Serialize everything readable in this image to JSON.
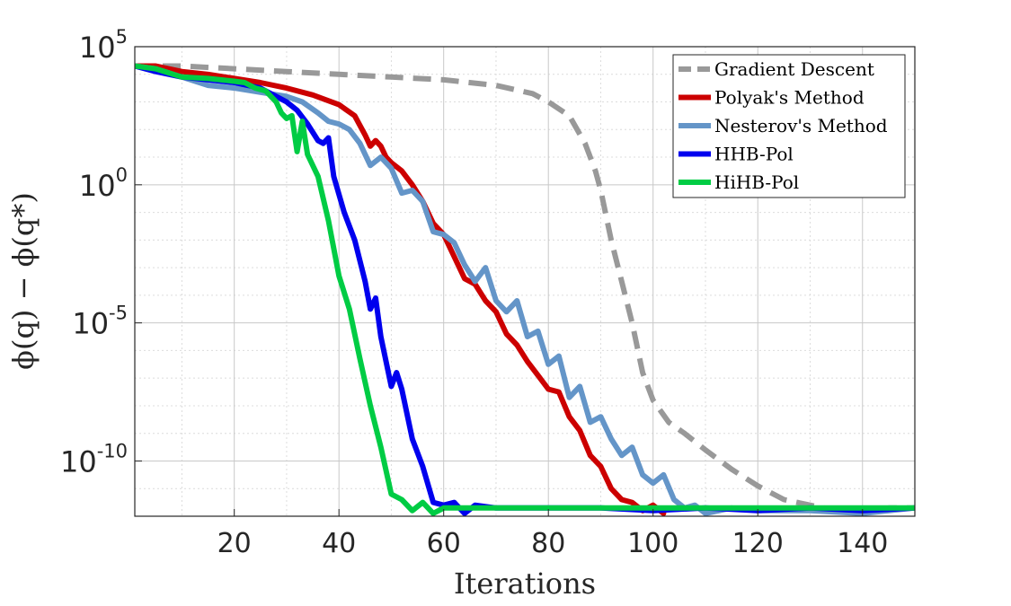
{
  "chart_data": {
    "type": "line",
    "title": "",
    "xlabel": "Iterations",
    "ylabel": "ϕ(q) − ϕ(q*)",
    "yscale": "log10",
    "xlim": [
      1,
      150
    ],
    "ylim_exponent": [
      -12,
      5
    ],
    "x_ticks": [
      20,
      40,
      60,
      80,
      100,
      120,
      140
    ],
    "y_ticks": [
      {
        "base": "10",
        "exp": "5",
        "value": 5
      },
      {
        "base": "10",
        "exp": "0",
        "value": 0
      },
      {
        "base": "10",
        "exp": "-5",
        "value": -5
      },
      {
        "base": "10",
        "exp": "-10",
        "value": -10
      }
    ],
    "grid": true,
    "minor_grid": true,
    "legend_position": "top-right",
    "series": [
      {
        "name": "Gradient Descent",
        "color": "#999999",
        "dashed": true,
        "points": [
          [
            1,
            4.3
          ],
          [
            10,
            4.3
          ],
          [
            20,
            4.2
          ],
          [
            30,
            4.1
          ],
          [
            40,
            4.0
          ],
          [
            50,
            3.9
          ],
          [
            60,
            3.8
          ],
          [
            70,
            3.6
          ],
          [
            77,
            3.3
          ],
          [
            80,
            3.0
          ],
          [
            84,
            2.5
          ],
          [
            87,
            1.5
          ],
          [
            89,
            0.5
          ],
          [
            90,
            -0.2
          ],
          [
            92,
            -2.0
          ],
          [
            94,
            -3.5
          ],
          [
            96,
            -5.0
          ],
          [
            98,
            -6.8
          ],
          [
            100,
            -7.8
          ],
          [
            103,
            -8.6
          ],
          [
            106,
            -9.0
          ],
          [
            110,
            -9.6
          ],
          [
            115,
            -10.3
          ],
          [
            120,
            -10.9
          ],
          [
            125,
            -11.4
          ],
          [
            130,
            -11.6
          ],
          [
            135,
            -11.8
          ],
          [
            140,
            -11.8
          ],
          [
            145,
            -11.7
          ],
          [
            150,
            -11.7
          ]
        ]
      },
      {
        "name": "Polyak's Method",
        "color": "#cc0000",
        "dashed": false,
        "points": [
          [
            1,
            4.3
          ],
          [
            5,
            4.3
          ],
          [
            10,
            4.1
          ],
          [
            15,
            4.0
          ],
          [
            20,
            3.85
          ],
          [
            25,
            3.7
          ],
          [
            30,
            3.5
          ],
          [
            35,
            3.25
          ],
          [
            40,
            2.9
          ],
          [
            43,
            2.5
          ],
          [
            45,
            1.8
          ],
          [
            46,
            1.4
          ],
          [
            47,
            1.6
          ],
          [
            48,
            1.4
          ],
          [
            49,
            1.0
          ],
          [
            50,
            0.8
          ],
          [
            52,
            0.5
          ],
          [
            54,
            0.0
          ],
          [
            56,
            -0.6
          ],
          [
            58,
            -1.4
          ],
          [
            60,
            -1.8
          ],
          [
            62,
            -2.6
          ],
          [
            64,
            -3.4
          ],
          [
            66,
            -3.6
          ],
          [
            68,
            -4.2
          ],
          [
            70,
            -4.6
          ],
          [
            72,
            -5.4
          ],
          [
            74,
            -5.8
          ],
          [
            76,
            -6.4
          ],
          [
            78,
            -6.9
          ],
          [
            80,
            -7.4
          ],
          [
            82,
            -7.5
          ],
          [
            84,
            -8.4
          ],
          [
            86,
            -8.9
          ],
          [
            88,
            -9.8
          ],
          [
            90,
            -10.2
          ],
          [
            92,
            -11.0
          ],
          [
            94,
            -11.4
          ],
          [
            96,
            -11.5
          ],
          [
            98,
            -11.8
          ],
          [
            100,
            -11.6
          ],
          [
            102,
            -11.9
          ]
        ]
      },
      {
        "name": "Nesterov's Method",
        "color": "#6495c8",
        "dashed": false,
        "points": [
          [
            1,
            4.3
          ],
          [
            5,
            4.2
          ],
          [
            10,
            3.9
          ],
          [
            15,
            3.6
          ],
          [
            20,
            3.5
          ],
          [
            25,
            3.35
          ],
          [
            30,
            3.2
          ],
          [
            33,
            3.0
          ],
          [
            36,
            2.6
          ],
          [
            38,
            2.3
          ],
          [
            40,
            2.2
          ],
          [
            42,
            2.0
          ],
          [
            44,
            1.5
          ],
          [
            46,
            0.7
          ],
          [
            48,
            1.0
          ],
          [
            50,
            0.6
          ],
          [
            52,
            -0.3
          ],
          [
            54,
            -0.2
          ],
          [
            56,
            -0.6
          ],
          [
            58,
            -1.7
          ],
          [
            60,
            -1.8
          ],
          [
            62,
            -2.1
          ],
          [
            64,
            -2.9
          ],
          [
            66,
            -3.5
          ],
          [
            68,
            -3.0
          ],
          [
            70,
            -4.2
          ],
          [
            72,
            -4.6
          ],
          [
            74,
            -4.2
          ],
          [
            76,
            -5.5
          ],
          [
            78,
            -5.3
          ],
          [
            80,
            -6.5
          ],
          [
            82,
            -6.2
          ],
          [
            84,
            -7.7
          ],
          [
            86,
            -7.3
          ],
          [
            88,
            -8.6
          ],
          [
            90,
            -8.4
          ],
          [
            92,
            -9.2
          ],
          [
            94,
            -9.8
          ],
          [
            96,
            -9.5
          ],
          [
            98,
            -10.5
          ],
          [
            100,
            -10.8
          ],
          [
            102,
            -10.5
          ],
          [
            104,
            -11.4
          ],
          [
            106,
            -11.7
          ],
          [
            108,
            -11.6
          ],
          [
            110,
            -11.9
          ],
          [
            115,
            -11.7
          ],
          [
            120,
            -11.8
          ],
          [
            130,
            -11.8
          ],
          [
            140,
            -11.9
          ],
          [
            150,
            -11.7
          ]
        ]
      },
      {
        "name": "HHB-Pol",
        "color": "#0000ee",
        "dashed": false,
        "points": [
          [
            1,
            4.3
          ],
          [
            5,
            4.1
          ],
          [
            10,
            3.9
          ],
          [
            15,
            3.8
          ],
          [
            20,
            3.7
          ],
          [
            25,
            3.5
          ],
          [
            28,
            3.2
          ],
          [
            30,
            3.0
          ],
          [
            32,
            2.7
          ],
          [
            34,
            2.2
          ],
          [
            36,
            1.6
          ],
          [
            37,
            1.5
          ],
          [
            38,
            1.7
          ],
          [
            39,
            0.3
          ],
          [
            41,
            -1.0
          ],
          [
            43,
            -2.0
          ],
          [
            45,
            -3.5
          ],
          [
            46,
            -4.5
          ],
          [
            47,
            -4.1
          ],
          [
            48,
            -5.5
          ],
          [
            50,
            -7.3
          ],
          [
            51,
            -6.8
          ],
          [
            52,
            -7.4
          ],
          [
            54,
            -9.2
          ],
          [
            56,
            -10.2
          ],
          [
            58,
            -11.5
          ],
          [
            60,
            -11.6
          ],
          [
            62,
            -11.5
          ],
          [
            64,
            -11.9
          ],
          [
            66,
            -11.6
          ],
          [
            70,
            -11.7
          ],
          [
            75,
            -11.7
          ],
          [
            80,
            -11.7
          ],
          [
            90,
            -11.7
          ],
          [
            100,
            -11.8
          ],
          [
            110,
            -11.7
          ],
          [
            120,
            -11.8
          ],
          [
            130,
            -11.7
          ],
          [
            140,
            -11.8
          ],
          [
            150,
            -11.7
          ]
        ]
      },
      {
        "name": "HiHB-Pol",
        "color": "#00cc44",
        "dashed": false,
        "points": [
          [
            1,
            4.3
          ],
          [
            5,
            4.2
          ],
          [
            10,
            3.9
          ],
          [
            15,
            3.85
          ],
          [
            20,
            3.75
          ],
          [
            22,
            3.7
          ],
          [
            24,
            3.5
          ],
          [
            26,
            3.4
          ],
          [
            27,
            3.2
          ],
          [
            28,
            3.0
          ],
          [
            29,
            2.6
          ],
          [
            30,
            2.4
          ],
          [
            31,
            2.5
          ],
          [
            32,
            1.2
          ],
          [
            33,
            2.3
          ],
          [
            34,
            1.1
          ],
          [
            36,
            0.3
          ],
          [
            38,
            -1.3
          ],
          [
            40,
            -3.3
          ],
          [
            42,
            -4.5
          ],
          [
            44,
            -6.3
          ],
          [
            46,
            -8.0
          ],
          [
            48,
            -9.5
          ],
          [
            50,
            -11.2
          ],
          [
            52,
            -11.4
          ],
          [
            54,
            -11.8
          ],
          [
            56,
            -11.5
          ],
          [
            58,
            -11.9
          ],
          [
            60,
            -11.7
          ],
          [
            65,
            -11.7
          ],
          [
            70,
            -11.7
          ],
          [
            80,
            -11.7
          ],
          [
            90,
            -11.7
          ],
          [
            100,
            -11.7
          ],
          [
            110,
            -11.7
          ],
          [
            120,
            -11.7
          ],
          [
            130,
            -11.7
          ],
          [
            140,
            -11.7
          ],
          [
            150,
            -11.7
          ]
        ]
      }
    ]
  }
}
